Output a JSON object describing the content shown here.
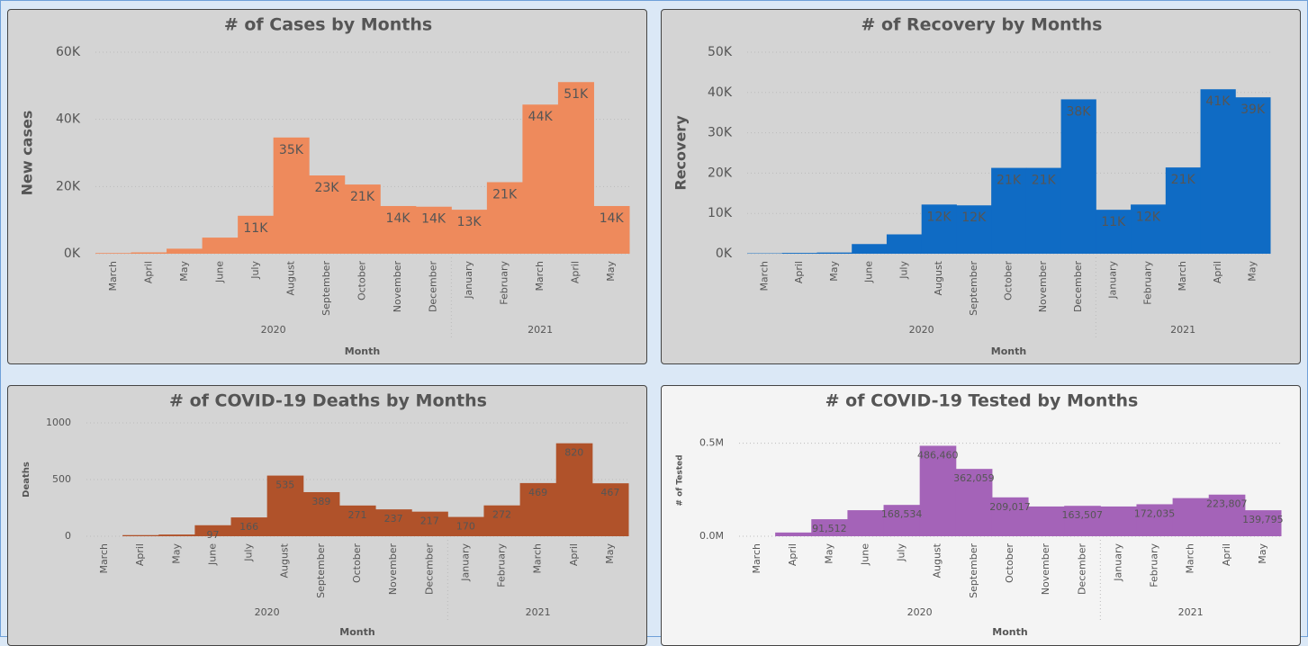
{
  "chart_data": [
    {
      "type": "bar",
      "title": "# of Cases by Months",
      "y_label": "New cases",
      "x_label": "Month",
      "groups": [
        {
          "label": "2020",
          "categories": [
            "March",
            "April",
            "May",
            "June",
            "July",
            "August",
            "September",
            "October",
            "November",
            "December"
          ]
        },
        {
          "label": "2021",
          "categories": [
            "January",
            "February",
            "March",
            "April",
            "May"
          ]
        }
      ],
      "values": [
        200,
        400,
        1500,
        4800,
        11300,
        34600,
        23300,
        20600,
        14200,
        14000,
        13100,
        21300,
        44400,
        51100,
        14200
      ],
      "value_labels": [
        null,
        null,
        null,
        null,
        "11K",
        "35K",
        "23K",
        "21K",
        "14K",
        "14K",
        "13K",
        "21K",
        "44K",
        "51K",
        "14K"
      ],
      "color": "#ee8a5c",
      "ylim": [
        0,
        60000
      ],
      "yticks": [
        {
          "value": 0,
          "label": "0K"
        },
        {
          "value": 20000,
          "label": "20K"
        },
        {
          "value": 40000,
          "label": "40K"
        },
        {
          "value": 60000,
          "label": "60K"
        }
      ],
      "grid": true
    },
    {
      "type": "bar",
      "title": "# of Recovery by Months",
      "y_label": "Recovery",
      "x_label": "Month",
      "groups": [
        {
          "label": "2020",
          "categories": [
            "March",
            "April",
            "May",
            "June",
            "July",
            "August",
            "September",
            "October",
            "November",
            "December"
          ]
        },
        {
          "label": "2021",
          "categories": [
            "January",
            "February",
            "March",
            "April",
            "May"
          ]
        }
      ],
      "values": [
        100,
        200,
        300,
        2400,
        4800,
        12200,
        12000,
        21300,
        21300,
        38300,
        10900,
        12200,
        21400,
        40800,
        38800
      ],
      "value_labels": [
        null,
        null,
        null,
        null,
        null,
        "12K",
        "12K",
        "21K",
        "21K",
        "38K",
        "11K",
        "12K",
        "21K",
        "41K",
        "39K"
      ],
      "color": "#0f6bc4",
      "ylim": [
        0,
        50000
      ],
      "yticks": [
        {
          "value": 0,
          "label": "0K"
        },
        {
          "value": 10000,
          "label": "10K"
        },
        {
          "value": 20000,
          "label": "20K"
        },
        {
          "value": 30000,
          "label": "30K"
        },
        {
          "value": 40000,
          "label": "40K"
        },
        {
          "value": 50000,
          "label": "50K"
        }
      ],
      "grid": true
    },
    {
      "type": "bar",
      "title": "# of COVID-19 Deaths by Months",
      "y_label": "Deaths",
      "x_label": "Month",
      "groups": [
        {
          "label": "2020",
          "categories": [
            "March",
            "April",
            "May",
            "June",
            "July",
            "August",
            "September",
            "October",
            "November",
            "December"
          ]
        },
        {
          "label": "2021",
          "categories": [
            "January",
            "February",
            "March",
            "April",
            "May"
          ]
        }
      ],
      "values": [
        0,
        10,
        15,
        97,
        166,
        535,
        389,
        271,
        237,
        217,
        170,
        272,
        469,
        820,
        467
      ],
      "value_labels": [
        null,
        null,
        null,
        "97",
        "166",
        "535",
        "389",
        "271",
        "237",
        "217",
        "170",
        "272",
        "469",
        "820",
        "467"
      ],
      "color": "#b0522a",
      "ylim": [
        0,
        1000
      ],
      "yticks": [
        0,
        500,
        1000
      ],
      "grid": true
    },
    {
      "type": "bar",
      "title": "# of COVID-19 Tested by Months",
      "y_label": "# of Tested",
      "x_label": "Month",
      "groups": [
        {
          "label": "2020",
          "categories": [
            "March",
            "April",
            "May",
            "June",
            "July",
            "August",
            "September",
            "October",
            "November",
            "December"
          ]
        },
        {
          "label": "2021",
          "categories": [
            "January",
            "February",
            "March",
            "April",
            "May"
          ]
        }
      ],
      "values": [
        0,
        20000,
        91512,
        140000,
        168534,
        486460,
        362059,
        209017,
        160000,
        163507,
        160000,
        172035,
        205000,
        223807,
        139795
      ],
      "value_labels": [
        null,
        null,
        "91,512",
        null,
        "168,534",
        "486,460",
        "362,059",
        "209,017",
        null,
        "163,507",
        null,
        "172,035",
        null,
        "223,807",
        "139,795"
      ],
      "color": "#a463b8",
      "ylim": [
        0,
        600000
      ],
      "yticks": [
        {
          "value": 0,
          "label": "0.0M"
        },
        {
          "value": 500000,
          "label": "0.5M"
        }
      ],
      "grid": true
    }
  ]
}
